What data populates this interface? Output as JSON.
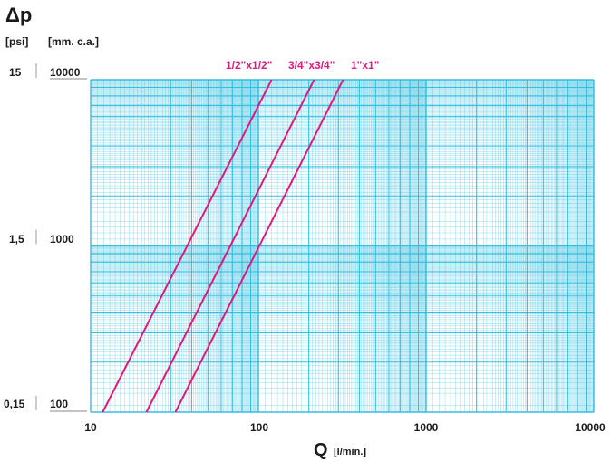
{
  "chart_data": {
    "type": "line",
    "title": "",
    "ylabel": "Δp",
    "ylabel_units": [
      "[psi]",
      "[mm. c.a.]"
    ],
    "xlabel": "Q",
    "xlabel_units": "[l/min.]",
    "x_scale": "log",
    "y_scale": "log",
    "xlim": [
      10,
      10000
    ],
    "ylim": [
      100,
      10000
    ],
    "grid": true,
    "x_ticks": [
      "10",
      "100",
      "1000",
      "10000"
    ],
    "y_ticks_mmca": [
      "100",
      "1000",
      "10000"
    ],
    "y_ticks_psi": [
      "0,15",
      "1,5",
      "15"
    ],
    "colors": {
      "grid": "#35bfe0",
      "series": "#e0197d"
    },
    "series": [
      {
        "name": "1/2\"x1/2\"",
        "x": [
          11.8,
          120
        ],
        "y": [
          100,
          10000
        ]
      },
      {
        "name": "3/4\"x3/4\"",
        "x": [
          21.5,
          215
        ],
        "y": [
          100,
          10000
        ]
      },
      {
        "name": "1\"x1\"",
        "x": [
          32,
          320
        ],
        "y": [
          100,
          10000
        ]
      }
    ]
  }
}
